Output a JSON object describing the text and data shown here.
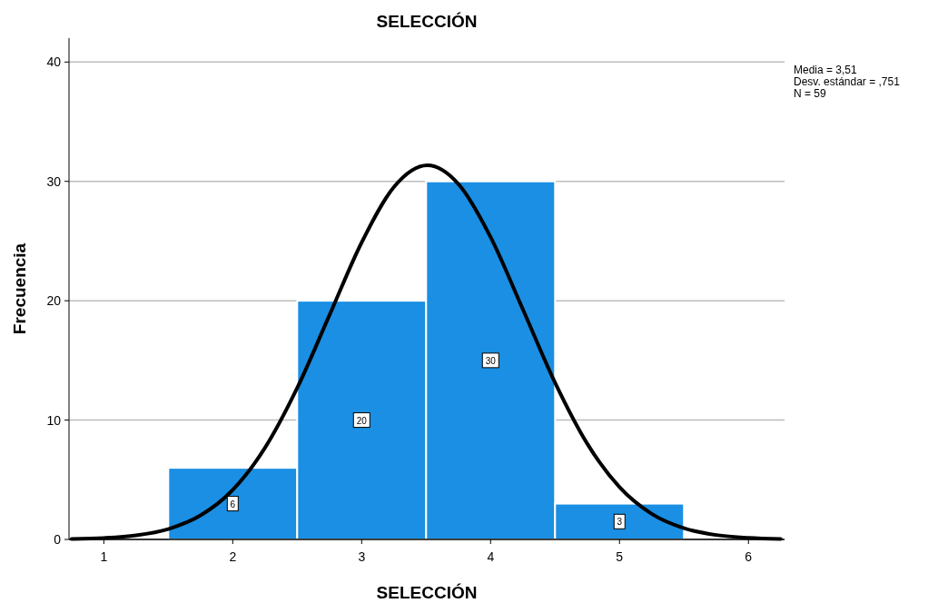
{
  "chart_data": {
    "type": "histogram",
    "title": "SELECCIÓN",
    "xlabel": "SELECCIÓN",
    "ylabel": "Frecuencia",
    "bins": [
      1.5,
      2.5,
      3.5,
      4.5,
      5.5
    ],
    "values": [
      6,
      20,
      30,
      3
    ],
    "color": "#1a8fe3",
    "value_labels": [
      "6",
      "20",
      "30",
      "3"
    ],
    "series": [
      {
        "type": "line",
        "color": "#000000",
        "x": [
          0.75,
          1.0,
          1.25,
          1.5,
          1.75,
          2.0,
          2.25,
          2.5,
          2.75,
          3.0,
          3.25,
          3.51,
          3.75,
          4.0,
          4.25,
          4.5,
          4.75,
          5.0,
          5.25,
          5.5,
          5.75,
          6.0,
          6.25
        ],
        "values": [
          0.04,
          0.12,
          0.34,
          0.87,
          2.01,
          4.15,
          7.67,
          12.69,
          18.78,
          24.88,
          29.52,
          31.34,
          29.78,
          25.33,
          19.29,
          13.14,
          8.02,
          4.38,
          2.14,
          0.94,
          0.37,
          0.13,
          0.04
        ]
      }
    ],
    "xlim": [
      0.73,
      6.28
    ],
    "xticks": [
      1,
      2,
      3,
      4,
      5,
      6
    ],
    "ylim": [
      0,
      42
    ],
    "yticks": [
      0,
      10,
      20,
      30,
      40
    ],
    "grid": "y",
    "annotations": [
      "Media = 3,51",
      "Desv. estándar = ,751",
      "N = 59"
    ]
  }
}
